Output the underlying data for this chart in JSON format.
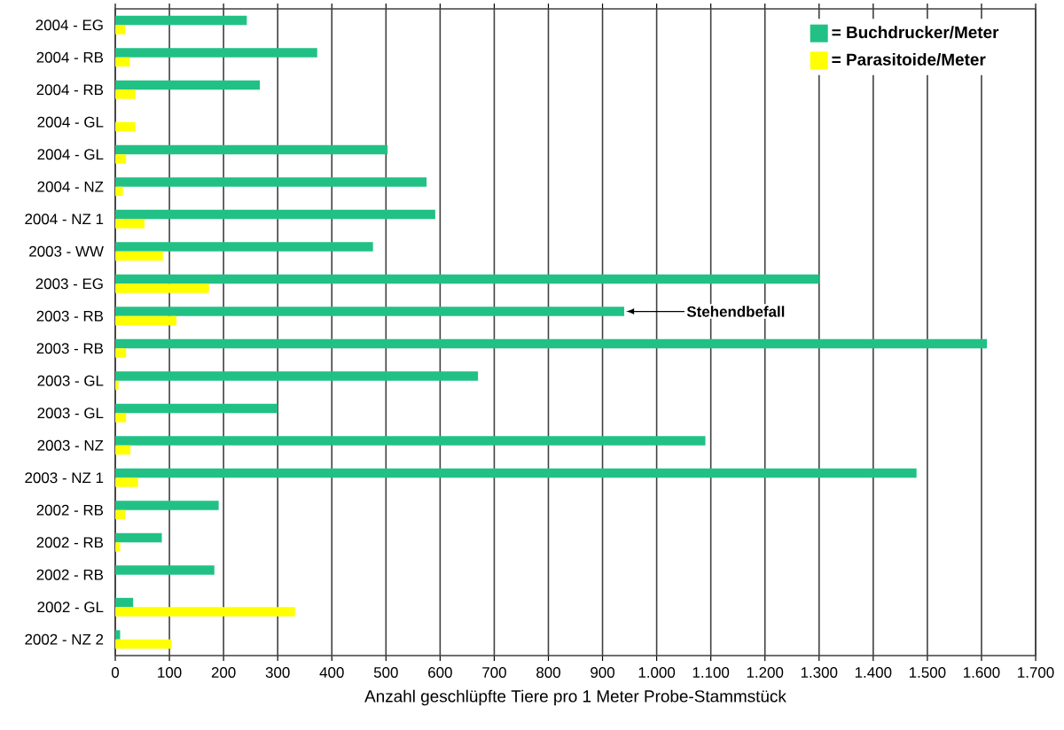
{
  "chart_data": {
    "type": "bar",
    "orientation": "horizontal",
    "xlabel": "Anzahl geschlüpfte Tiere pro 1 Meter Probe-Stammstück",
    "categories": [
      "2004 - EG",
      "2004 - RB",
      "2004 - RB",
      "2004 - GL",
      "2004 - GL",
      "2004 - NZ",
      "2004 - NZ 1",
      "2003 - WW",
      "2003 - EG",
      "2003 - RB",
      "2003 - RB",
      "2003 - GL",
      "2003 - GL",
      "2003 - NZ",
      "2003 - NZ 1",
      "2002 - RB",
      "2002 - RB",
      "2002 - RB",
      "2002 - GL",
      "2002 - NZ 2"
    ],
    "series": [
      {
        "name": "= Buchdrucker/Meter",
        "color": "#21c186",
        "values": [
          243,
          373,
          267,
          0,
          503,
          575,
          591,
          476,
          1300,
          940,
          1610,
          670,
          300,
          1090,
          1480,
          191,
          86,
          183,
          33,
          9
        ]
      },
      {
        "name": "= Parasitoide/Meter",
        "color": "#ffff00",
        "values": [
          18,
          27,
          37,
          37,
          20,
          14,
          54,
          88,
          173,
          113,
          20,
          6,
          20,
          28,
          42,
          18,
          9,
          0,
          332,
          104
        ]
      }
    ],
    "xlim": [
      0,
      1700
    ],
    "xticks": [
      0,
      100,
      200,
      300,
      400,
      500,
      600,
      700,
      800,
      900,
      {
        "value": 1000,
        "label": "1.000"
      },
      {
        "value": 1100,
        "label": "1.100"
      },
      {
        "value": 1200,
        "label": "1.200"
      },
      {
        "value": 1300,
        "label": "1.300"
      },
      {
        "value": 1400,
        "label": "1.400"
      },
      {
        "value": 1500,
        "label": "1.500"
      },
      {
        "value": 1600,
        "label": "1.600"
      },
      {
        "value": 1700,
        "label": "1.700"
      }
    ],
    "annotations": [
      {
        "text": "Stehendbefall",
        "x": 940,
        "y": "2003 - RB"
      }
    ],
    "grid": "x",
    "legend": "top right"
  }
}
